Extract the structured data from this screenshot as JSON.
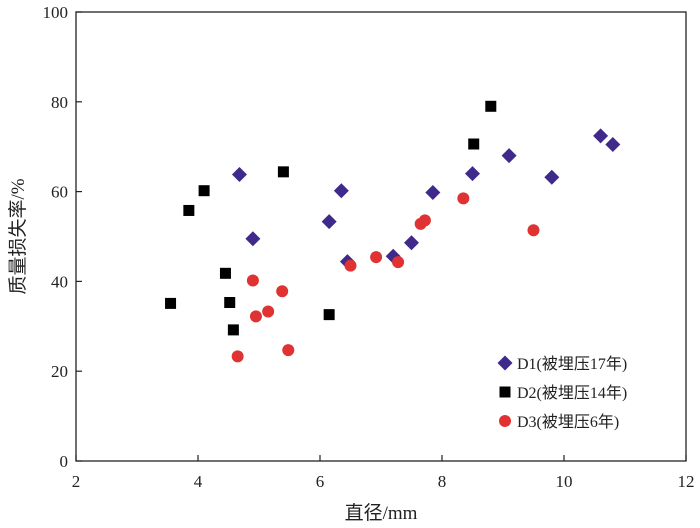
{
  "chart_data": {
    "type": "scatter",
    "title": "",
    "xlabel": "直径/mm",
    "ylabel": "质量损失率/%",
    "xlim": [
      2,
      12
    ],
    "ylim": [
      0,
      100
    ],
    "x_ticks": [
      2,
      4,
      6,
      8,
      10,
      12
    ],
    "y_ticks": [
      0,
      20,
      40,
      60,
      80,
      100
    ],
    "x_tick_labels": [
      "2",
      "4",
      "6",
      "8",
      "10",
      "12"
    ],
    "y_tick_labels": [
      "0",
      "20",
      "40",
      "60",
      "80",
      "100"
    ],
    "grid": false,
    "legend_position": "bottom-right",
    "series": [
      {
        "name": "D1(被埋压17年)",
        "marker": "diamond",
        "color": "#3f2a8c",
        "points": [
          [
            4.68,
            63.8
          ],
          [
            4.9,
            49.5
          ],
          [
            6.15,
            53.3
          ],
          [
            6.35,
            60.2
          ],
          [
            6.45,
            44.4
          ],
          [
            7.2,
            45.6
          ],
          [
            7.5,
            48.6
          ],
          [
            7.85,
            59.8
          ],
          [
            8.5,
            64.0
          ],
          [
            9.1,
            68.0
          ],
          [
            9.8,
            63.2
          ],
          [
            10.6,
            72.4
          ],
          [
            10.8,
            70.5
          ]
        ]
      },
      {
        "name": "D2(被埋压14年)",
        "marker": "square",
        "color": "#000000",
        "points": [
          [
            3.55,
            35.1
          ],
          [
            3.85,
            55.8
          ],
          [
            4.1,
            60.2
          ],
          [
            4.45,
            41.8
          ],
          [
            4.52,
            35.3
          ],
          [
            4.58,
            29.2
          ],
          [
            5.4,
            64.4
          ],
          [
            6.15,
            32.6
          ],
          [
            8.52,
            70.6
          ],
          [
            8.8,
            79.0
          ]
        ]
      },
      {
        "name": "D3(被埋压6年)",
        "marker": "circle",
        "color": "#e03232",
        "points": [
          [
            4.65,
            23.3
          ],
          [
            4.9,
            40.2
          ],
          [
            4.95,
            32.2
          ],
          [
            5.15,
            33.3
          ],
          [
            5.38,
            37.8
          ],
          [
            5.48,
            24.7
          ],
          [
            6.5,
            43.5
          ],
          [
            6.92,
            45.4
          ],
          [
            7.28,
            44.3
          ],
          [
            7.65,
            52.8
          ],
          [
            7.72,
            53.6
          ],
          [
            8.35,
            58.5
          ],
          [
            9.5,
            51.4
          ]
        ]
      }
    ]
  }
}
